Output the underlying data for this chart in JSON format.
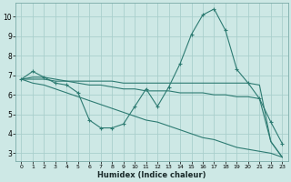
{
  "xlabel": "Humidex (Indice chaleur)",
  "background_color": "#cde8e5",
  "grid_color": "#aacfcc",
  "line_color": "#2d7b72",
  "xlim": [
    -0.5,
    23.5
  ],
  "ylim": [
    2.6,
    10.7
  ],
  "yticks": [
    3,
    4,
    5,
    6,
    7,
    8,
    9,
    10
  ],
  "xticks": [
    0,
    1,
    2,
    3,
    4,
    5,
    6,
    7,
    8,
    9,
    10,
    11,
    12,
    13,
    14,
    15,
    16,
    17,
    18,
    19,
    20,
    21,
    22,
    23
  ],
  "series": [
    {
      "x": [
        0,
        1,
        2,
        3,
        4,
        5,
        6,
        7,
        8,
        9,
        10,
        11,
        12,
        13,
        14,
        15,
        16,
        17,
        18,
        19,
        20,
        21,
        22,
        23
      ],
      "y": [
        6.8,
        7.2,
        6.9,
        6.6,
        6.5,
        6.1,
        4.7,
        4.3,
        4.3,
        4.5,
        5.4,
        6.3,
        5.4,
        6.4,
        7.6,
        9.1,
        10.1,
        10.4,
        9.3,
        7.3,
        6.6,
        5.8,
        4.6,
        3.5
      ],
      "markers": true
    },
    {
      "x": [
        0,
        1,
        2,
        3,
        4,
        5,
        6,
        7,
        8,
        9,
        10,
        11,
        12,
        13,
        14,
        15,
        16,
        17,
        18,
        19,
        20,
        21,
        22,
        23
      ],
      "y": [
        6.8,
        6.9,
        6.9,
        6.8,
        6.7,
        6.7,
        6.7,
        6.7,
        6.7,
        6.6,
        6.6,
        6.6,
        6.6,
        6.6,
        6.6,
        6.6,
        6.6,
        6.6,
        6.6,
        6.6,
        6.6,
        6.5,
        3.6,
        2.8
      ],
      "markers": false
    },
    {
      "x": [
        0,
        1,
        2,
        3,
        4,
        5,
        6,
        7,
        8,
        9,
        10,
        11,
        12,
        13,
        14,
        15,
        16,
        17,
        18,
        19,
        20,
        21,
        22,
        23
      ],
      "y": [
        6.8,
        6.8,
        6.8,
        6.7,
        6.7,
        6.6,
        6.5,
        6.5,
        6.4,
        6.3,
        6.3,
        6.2,
        6.2,
        6.2,
        6.1,
        6.1,
        6.1,
        6.0,
        6.0,
        5.9,
        5.9,
        5.8,
        3.6,
        2.8
      ],
      "markers": false
    },
    {
      "x": [
        0,
        1,
        2,
        3,
        4,
        5,
        6,
        7,
        8,
        9,
        10,
        11,
        12,
        13,
        14,
        15,
        16,
        17,
        18,
        19,
        20,
        21,
        22,
        23
      ],
      "y": [
        6.8,
        6.6,
        6.5,
        6.3,
        6.1,
        5.9,
        5.7,
        5.5,
        5.3,
        5.1,
        4.9,
        4.7,
        4.6,
        4.4,
        4.2,
        4.0,
        3.8,
        3.7,
        3.5,
        3.3,
        3.2,
        3.1,
        3.0,
        2.8
      ],
      "markers": false
    }
  ]
}
